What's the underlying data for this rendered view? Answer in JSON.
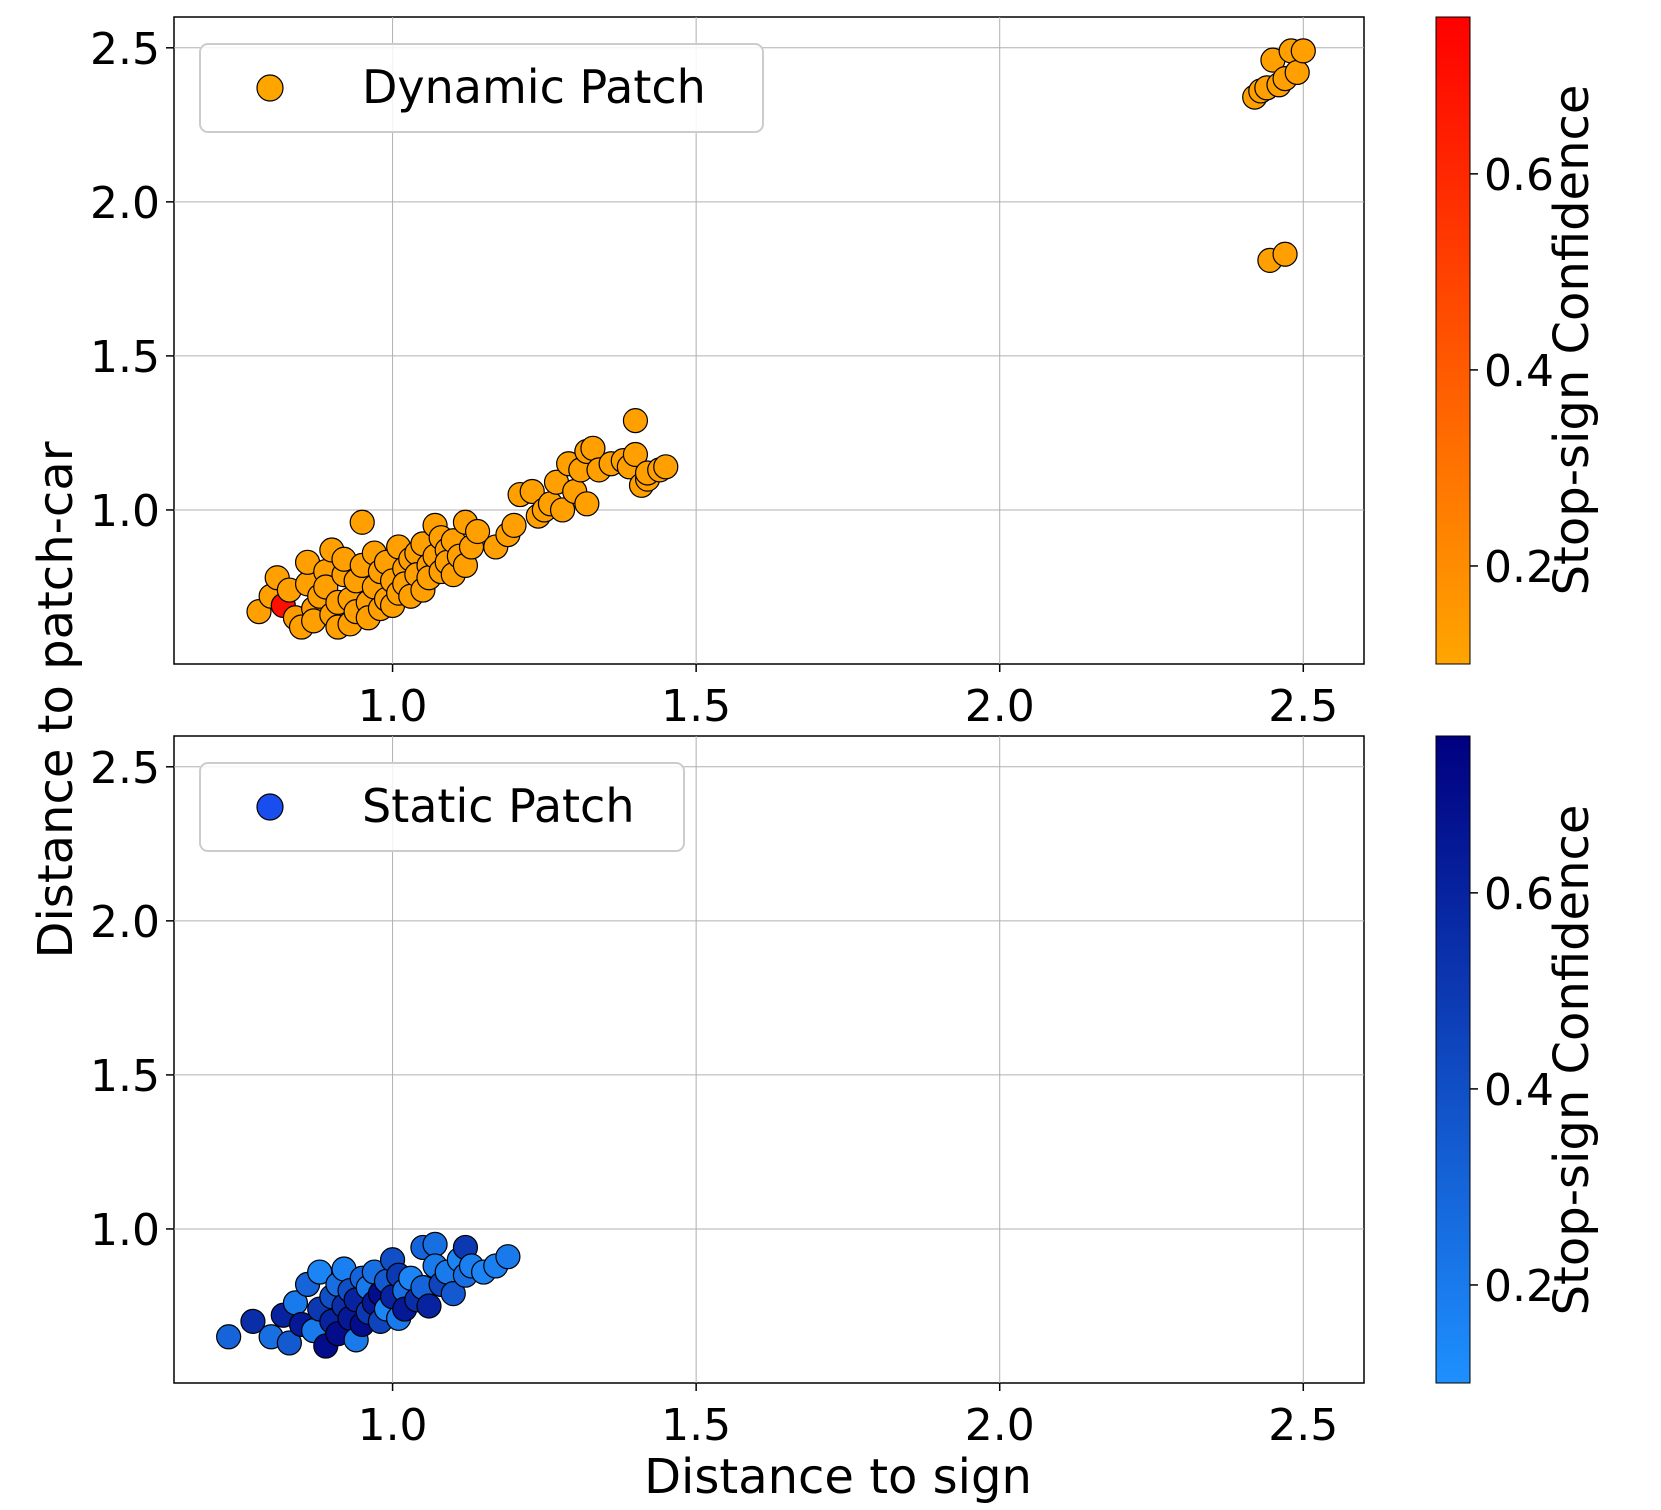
{
  "figure": {
    "shared_ylabel": "Distance to patch-car",
    "shared_xlabel": "Distance to sign"
  },
  "chart_data": [
    {
      "type": "scatter",
      "title": "",
      "xlabel": "",
      "ylabel": "Distance to patch-car",
      "xlim": [
        0.64,
        2.6
      ],
      "ylim": [
        0.5,
        2.6
      ],
      "xticks": [
        "1.0",
        "1.5",
        "2.0",
        "2.5"
      ],
      "yticks": [
        "1.0",
        "1.5",
        "2.0",
        "2.5"
      ],
      "grid": true,
      "legend": {
        "label": "Dynamic Patch",
        "location": "upper-left",
        "color": "#ffa500"
      },
      "colorbar": {
        "label": "Stop-sign Confidence",
        "range": [
          0.1,
          0.76
        ],
        "ticks": [
          "0.2",
          "0.4",
          "0.6"
        ],
        "colors": [
          "#ffa500",
          "#ff0000"
        ]
      },
      "series": [
        {
          "name": "Dynamic Patch",
          "points": [
            [
              0.78,
              0.67,
              0.12
            ],
            [
              0.8,
              0.72,
              0.12
            ],
            [
              0.81,
              0.78,
              0.12
            ],
            [
              0.82,
              0.69,
              0.7
            ],
            [
              0.83,
              0.74,
              0.12
            ],
            [
              0.84,
              0.65,
              0.15
            ],
            [
              0.85,
              0.62,
              0.12
            ],
            [
              0.86,
              0.76,
              0.12
            ],
            [
              0.86,
              0.83,
              0.12
            ],
            [
              0.87,
              0.68,
              0.14
            ],
            [
              0.87,
              0.64,
              0.12
            ],
            [
              0.88,
              0.72,
              0.12
            ],
            [
              0.89,
              0.8,
              0.12
            ],
            [
              0.89,
              0.75,
              0.12
            ],
            [
              0.9,
              0.87,
              0.12
            ],
            [
              0.9,
              0.66,
              0.12
            ],
            [
              0.91,
              0.7,
              0.13
            ],
            [
              0.91,
              0.62,
              0.12
            ],
            [
              0.92,
              0.79,
              0.12
            ],
            [
              0.92,
              0.84,
              0.12
            ],
            [
              0.93,
              0.63,
              0.12
            ],
            [
              0.93,
              0.71,
              0.12
            ],
            [
              0.94,
              0.77,
              0.12
            ],
            [
              0.94,
              0.67,
              0.12
            ],
            [
              0.95,
              0.96,
              0.12
            ],
            [
              0.95,
              0.82,
              0.12
            ],
            [
              0.96,
              0.7,
              0.12
            ],
            [
              0.96,
              0.65,
              0.12
            ],
            [
              0.97,
              0.86,
              0.12
            ],
            [
              0.97,
              0.75,
              0.12
            ],
            [
              0.98,
              0.8,
              0.12
            ],
            [
              0.98,
              0.68,
              0.12
            ],
            [
              0.99,
              0.71,
              0.12
            ],
            [
              0.99,
              0.83,
              0.12
            ],
            [
              1.0,
              0.77,
              0.12
            ],
            [
              1.0,
              0.69,
              0.12
            ],
            [
              1.01,
              0.88,
              0.12
            ],
            [
              1.01,
              0.73,
              0.12
            ],
            [
              1.02,
              0.81,
              0.12
            ],
            [
              1.02,
              0.76,
              0.12
            ],
            [
              1.03,
              0.84,
              0.12
            ],
            [
              1.03,
              0.72,
              0.12
            ],
            [
              1.04,
              0.86,
              0.12
            ],
            [
              1.04,
              0.79,
              0.12
            ],
            [
              1.05,
              0.74,
              0.12
            ],
            [
              1.05,
              0.89,
              0.12
            ],
            [
              1.06,
              0.82,
              0.12
            ],
            [
              1.06,
              0.78,
              0.12
            ],
            [
              1.07,
              0.95,
              0.12
            ],
            [
              1.07,
              0.85,
              0.12
            ],
            [
              1.08,
              0.91,
              0.12
            ],
            [
              1.08,
              0.8,
              0.12
            ],
            [
              1.09,
              0.87,
              0.12
            ],
            [
              1.09,
              0.83,
              0.12
            ],
            [
              1.1,
              0.9,
              0.12
            ],
            [
              1.1,
              0.79,
              0.12
            ],
            [
              1.11,
              0.85,
              0.12
            ],
            [
              1.12,
              0.96,
              0.12
            ],
            [
              1.12,
              0.82,
              0.12
            ],
            [
              1.13,
              0.88,
              0.12
            ],
            [
              1.14,
              0.93,
              0.12
            ],
            [
              1.17,
              0.88,
              0.12
            ],
            [
              1.19,
              0.92,
              0.12
            ],
            [
              1.2,
              0.95,
              0.12
            ],
            [
              1.21,
              1.05,
              0.12
            ],
            [
              1.23,
              1.06,
              0.12
            ],
            [
              1.24,
              0.98,
              0.12
            ],
            [
              1.25,
              1.0,
              0.12
            ],
            [
              1.26,
              1.02,
              0.12
            ],
            [
              1.27,
              1.09,
              0.12
            ],
            [
              1.28,
              1.0,
              0.12
            ],
            [
              1.29,
              1.15,
              0.12
            ],
            [
              1.3,
              1.06,
              0.12
            ],
            [
              1.31,
              1.13,
              0.12
            ],
            [
              1.32,
              1.19,
              0.12
            ],
            [
              1.32,
              1.02,
              0.12
            ],
            [
              1.33,
              1.2,
              0.12
            ],
            [
              1.34,
              1.13,
              0.12
            ],
            [
              1.36,
              1.15,
              0.12
            ],
            [
              1.38,
              1.16,
              0.12
            ],
            [
              1.39,
              1.14,
              0.12
            ],
            [
              1.4,
              1.29,
              0.12
            ],
            [
              1.4,
              1.18,
              0.12
            ],
            [
              1.41,
              1.08,
              0.12
            ],
            [
              1.42,
              1.1,
              0.12
            ],
            [
              1.42,
              1.12,
              0.12
            ],
            [
              1.44,
              1.13,
              0.12
            ],
            [
              1.45,
              1.14,
              0.12
            ],
            [
              2.42,
              2.34,
              0.12
            ],
            [
              2.43,
              2.36,
              0.12
            ],
            [
              2.44,
              2.37,
              0.12
            ],
            [
              2.45,
              2.46,
              0.12
            ],
            [
              2.46,
              2.38,
              0.12
            ],
            [
              2.47,
              2.4,
              0.12
            ],
            [
              2.48,
              2.49,
              0.12
            ],
            [
              2.49,
              2.42,
              0.12
            ],
            [
              2.5,
              2.49,
              0.12
            ],
            [
              2.445,
              1.81,
              0.12
            ],
            [
              2.47,
              1.83,
              0.12
            ]
          ]
        }
      ]
    },
    {
      "type": "scatter",
      "title": "",
      "xlabel": "Distance to sign",
      "ylabel": "Distance to patch-car",
      "xlim": [
        0.64,
        2.6
      ],
      "ylim": [
        0.5,
        2.6
      ],
      "xticks": [
        "1.0",
        "1.5",
        "2.0",
        "2.5"
      ],
      "yticks": [
        "1.0",
        "1.5",
        "2.0",
        "2.5"
      ],
      "grid": true,
      "legend": {
        "label": "Static Patch",
        "location": "upper-left",
        "color": "#1a4dee"
      },
      "colorbar": {
        "label": "Stop-sign Confidence",
        "range": [
          0.1,
          0.76
        ],
        "ticks": [
          "0.2",
          "0.4",
          "0.6"
        ],
        "colors": [
          "#1e90ff",
          "#000080"
        ]
      },
      "series": [
        {
          "name": "Static Patch",
          "points": [
            [
              0.73,
              0.65,
              0.3
            ],
            [
              0.77,
              0.7,
              0.55
            ],
            [
              0.8,
              0.65,
              0.25
            ],
            [
              0.82,
              0.72,
              0.6
            ],
            [
              0.83,
              0.63,
              0.35
            ],
            [
              0.84,
              0.76,
              0.2
            ],
            [
              0.85,
              0.69,
              0.65
            ],
            [
              0.86,
              0.82,
              0.3
            ],
            [
              0.87,
              0.67,
              0.2
            ],
            [
              0.88,
              0.74,
              0.5
            ],
            [
              0.88,
              0.86,
              0.15
            ],
            [
              0.89,
              0.62,
              0.7
            ],
            [
              0.9,
              0.78,
              0.4
            ],
            [
              0.9,
              0.7,
              0.6
            ],
            [
              0.91,
              0.82,
              0.25
            ],
            [
              0.91,
              0.66,
              0.7
            ],
            [
              0.92,
              0.75,
              0.55
            ],
            [
              0.92,
              0.87,
              0.18
            ],
            [
              0.93,
              0.71,
              0.65
            ],
            [
              0.93,
              0.8,
              0.4
            ],
            [
              0.94,
              0.64,
              0.2
            ],
            [
              0.94,
              0.77,
              0.6
            ],
            [
              0.95,
              0.84,
              0.3
            ],
            [
              0.95,
              0.69,
              0.7
            ],
            [
              0.96,
              0.73,
              0.5
            ],
            [
              0.96,
              0.81,
              0.2
            ],
            [
              0.97,
              0.76,
              0.65
            ],
            [
              0.97,
              0.86,
              0.25
            ],
            [
              0.98,
              0.7,
              0.45
            ],
            [
              0.98,
              0.79,
              0.7
            ],
            [
              0.99,
              0.83,
              0.35
            ],
            [
              0.99,
              0.74,
              0.15
            ],
            [
              1.0,
              0.9,
              0.4
            ],
            [
              1.0,
              0.78,
              0.6
            ],
            [
              1.01,
              0.71,
              0.2
            ],
            [
              1.01,
              0.85,
              0.5
            ],
            [
              1.02,
              0.8,
              0.25
            ],
            [
              1.02,
              0.74,
              0.65
            ],
            [
              1.03,
              0.84,
              0.15
            ],
            [
              1.04,
              0.77,
              0.55
            ],
            [
              1.05,
              0.81,
              0.3
            ],
            [
              1.05,
              0.94,
              0.3
            ],
            [
              1.06,
              0.75,
              0.6
            ],
            [
              1.07,
              0.95,
              0.25
            ],
            [
              1.07,
              0.88,
              0.2
            ],
            [
              1.08,
              0.82,
              0.45
            ],
            [
              1.09,
              0.86,
              0.2
            ],
            [
              1.1,
              0.79,
              0.35
            ],
            [
              1.11,
              0.9,
              0.15
            ],
            [
              1.12,
              0.94,
              0.5
            ],
            [
              1.12,
              0.85,
              0.25
            ],
            [
              1.13,
              0.88,
              0.18
            ],
            [
              1.15,
              0.86,
              0.15
            ],
            [
              1.17,
              0.88,
              0.18
            ],
            [
              1.19,
              0.91,
              0.2
            ]
          ]
        }
      ]
    }
  ]
}
